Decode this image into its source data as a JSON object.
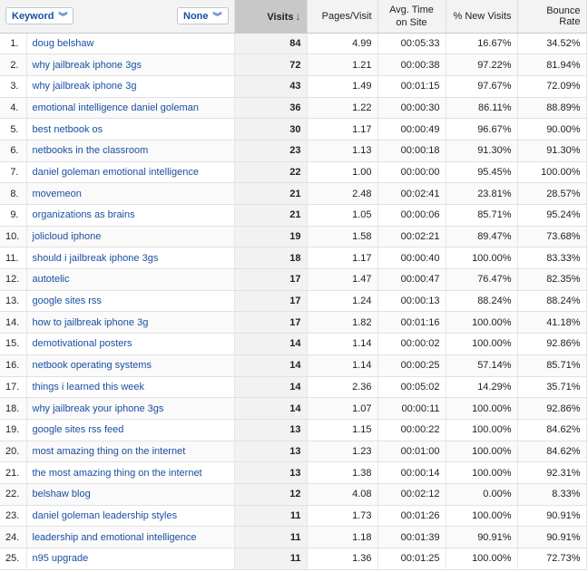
{
  "header": {
    "primary_dimension": "Keyword",
    "secondary_dimension": "None",
    "columns": [
      "Visits",
      "Pages/Visit",
      "Avg. Time on Site",
      "% New Visits",
      "Bounce Rate"
    ],
    "sort_icon": "arrow-down-icon",
    "dropdown_icon": "double-chevron-icon"
  },
  "rows": [
    {
      "idx": "1.",
      "keyword": "doug belshaw",
      "visits": "84",
      "pages": "4.99",
      "time": "00:05:33",
      "new": "16.67%",
      "bounce": "34.52%"
    },
    {
      "idx": "2.",
      "keyword": "why jailbreak iphone 3gs",
      "visits": "72",
      "pages": "1.21",
      "time": "00:00:38",
      "new": "97.22%",
      "bounce": "81.94%"
    },
    {
      "idx": "3.",
      "keyword": "why jailbreak iphone 3g",
      "visits": "43",
      "pages": "1.49",
      "time": "00:01:15",
      "new": "97.67%",
      "bounce": "72.09%"
    },
    {
      "idx": "4.",
      "keyword": "emotional intelligence daniel goleman",
      "visits": "36",
      "pages": "1.22",
      "time": "00:00:30",
      "new": "86.11%",
      "bounce": "88.89%"
    },
    {
      "idx": "5.",
      "keyword": "best netbook os",
      "visits": "30",
      "pages": "1.17",
      "time": "00:00:49",
      "new": "96.67%",
      "bounce": "90.00%"
    },
    {
      "idx": "6.",
      "keyword": "netbooks in the classroom",
      "visits": "23",
      "pages": "1.13",
      "time": "00:00:18",
      "new": "91.30%",
      "bounce": "91.30%"
    },
    {
      "idx": "7.",
      "keyword": "daniel goleman emotional intelligence",
      "visits": "22",
      "pages": "1.00",
      "time": "00:00:00",
      "new": "95.45%",
      "bounce": "100.00%"
    },
    {
      "idx": "8.",
      "keyword": "movemeon",
      "visits": "21",
      "pages": "2.48",
      "time": "00:02:41",
      "new": "23.81%",
      "bounce": "28.57%"
    },
    {
      "idx": "9.",
      "keyword": "organizations as brains",
      "visits": "21",
      "pages": "1.05",
      "time": "00:00:06",
      "new": "85.71%",
      "bounce": "95.24%"
    },
    {
      "idx": "10.",
      "keyword": "jolicloud iphone",
      "visits": "19",
      "pages": "1.58",
      "time": "00:02:21",
      "new": "89.47%",
      "bounce": "73.68%"
    },
    {
      "idx": "11.",
      "keyword": "should i jailbreak iphone 3gs",
      "visits": "18",
      "pages": "1.17",
      "time": "00:00:40",
      "new": "100.00%",
      "bounce": "83.33%"
    },
    {
      "idx": "12.",
      "keyword": "autotelic",
      "visits": "17",
      "pages": "1.47",
      "time": "00:00:47",
      "new": "76.47%",
      "bounce": "82.35%"
    },
    {
      "idx": "13.",
      "keyword": "google sites rss",
      "visits": "17",
      "pages": "1.24",
      "time": "00:00:13",
      "new": "88.24%",
      "bounce": "88.24%"
    },
    {
      "idx": "14.",
      "keyword": "how to jailbreak iphone 3g",
      "visits": "17",
      "pages": "1.82",
      "time": "00:01:16",
      "new": "100.00%",
      "bounce": "41.18%"
    },
    {
      "idx": "15.",
      "keyword": "demotivational posters",
      "visits": "14",
      "pages": "1.14",
      "time": "00:00:02",
      "new": "100.00%",
      "bounce": "92.86%"
    },
    {
      "idx": "16.",
      "keyword": "netbook operating systems",
      "visits": "14",
      "pages": "1.14",
      "time": "00:00:25",
      "new": "57.14%",
      "bounce": "85.71%"
    },
    {
      "idx": "17.",
      "keyword": "things i learned this week",
      "visits": "14",
      "pages": "2.36",
      "time": "00:05:02",
      "new": "14.29%",
      "bounce": "35.71%"
    },
    {
      "idx": "18.",
      "keyword": "why jailbreak your iphone 3gs",
      "visits": "14",
      "pages": "1.07",
      "time": "00:00:11",
      "new": "100.00%",
      "bounce": "92.86%"
    },
    {
      "idx": "19.",
      "keyword": "google sites rss feed",
      "visits": "13",
      "pages": "1.15",
      "time": "00:00:22",
      "new": "100.00%",
      "bounce": "84.62%"
    },
    {
      "idx": "20.",
      "keyword": "most amazing thing on the internet",
      "visits": "13",
      "pages": "1.23",
      "time": "00:01:00",
      "new": "100.00%",
      "bounce": "84.62%"
    },
    {
      "idx": "21.",
      "keyword": "the most amazing thing on the internet",
      "visits": "13",
      "pages": "1.38",
      "time": "00:00:14",
      "new": "100.00%",
      "bounce": "92.31%"
    },
    {
      "idx": "22.",
      "keyword": "belshaw blog",
      "visits": "12",
      "pages": "4.08",
      "time": "00:02:12",
      "new": "0.00%",
      "bounce": "8.33%"
    },
    {
      "idx": "23.",
      "keyword": "daniel goleman leadership styles",
      "visits": "11",
      "pages": "1.73",
      "time": "00:01:26",
      "new": "100.00%",
      "bounce": "90.91%"
    },
    {
      "idx": "24.",
      "keyword": "leadership and emotional intelligence",
      "visits": "11",
      "pages": "1.18",
      "time": "00:01:39",
      "new": "90.91%",
      "bounce": "90.91%"
    },
    {
      "idx": "25.",
      "keyword": "n95 upgrade",
      "visits": "11",
      "pages": "1.36",
      "time": "00:01:25",
      "new": "100.00%",
      "bounce": "72.73%"
    }
  ]
}
